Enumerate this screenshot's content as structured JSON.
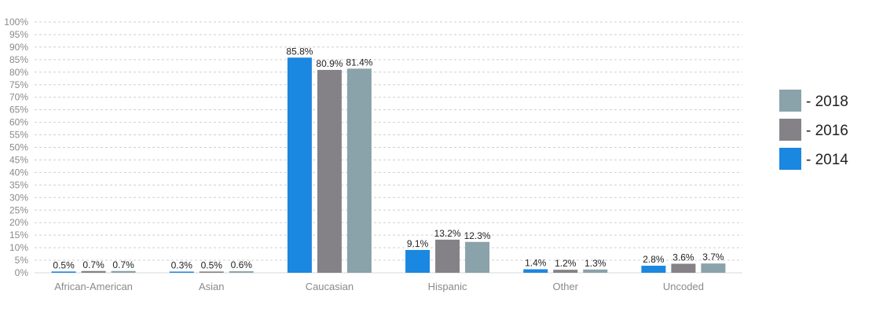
{
  "chart_data": {
    "type": "bar",
    "categories": [
      "African-American",
      "Asian",
      "Caucasian",
      "Hispanic",
      "Other",
      "Uncoded"
    ],
    "series": [
      {
        "name": "- 2014",
        "color": "#1a87e0",
        "values": [
          0.5,
          0.3,
          85.8,
          9.1,
          1.4,
          2.8
        ],
        "labels": [
          "0.5%",
          "0.3%",
          "85.8%",
          "9.1%",
          "1.4%",
          "2.8%"
        ]
      },
      {
        "name": "- 2016",
        "color": "#848286",
        "values": [
          0.7,
          0.5,
          80.9,
          13.2,
          1.2,
          3.6
        ],
        "labels": [
          "0.7%",
          "0.5%",
          "80.9%",
          "13.2%",
          "1.2%",
          "3.6%"
        ]
      },
      {
        "name": "- 2018",
        "color": "#8aa2aa",
        "values": [
          0.7,
          0.6,
          81.4,
          12.3,
          1.3,
          3.7
        ],
        "labels": [
          "0.7%",
          "0.6%",
          "81.4%",
          "12.3%",
          "1.3%",
          "3.7%"
        ]
      }
    ],
    "ylim": [
      0,
      100
    ],
    "yticks": [
      "0%",
      "5%",
      "10%",
      "15%",
      "20%",
      "25%",
      "30%",
      "35%",
      "40%",
      "45%",
      "50%",
      "55%",
      "60%",
      "65%",
      "70%",
      "75%",
      "80%",
      "85%",
      "90%",
      "95%",
      "100%"
    ],
    "grid": true,
    "legend_position": "right",
    "legend_order": [
      "- 2018",
      "- 2016",
      "- 2014"
    ],
    "title": "",
    "xlabel": "",
    "ylabel": ""
  }
}
